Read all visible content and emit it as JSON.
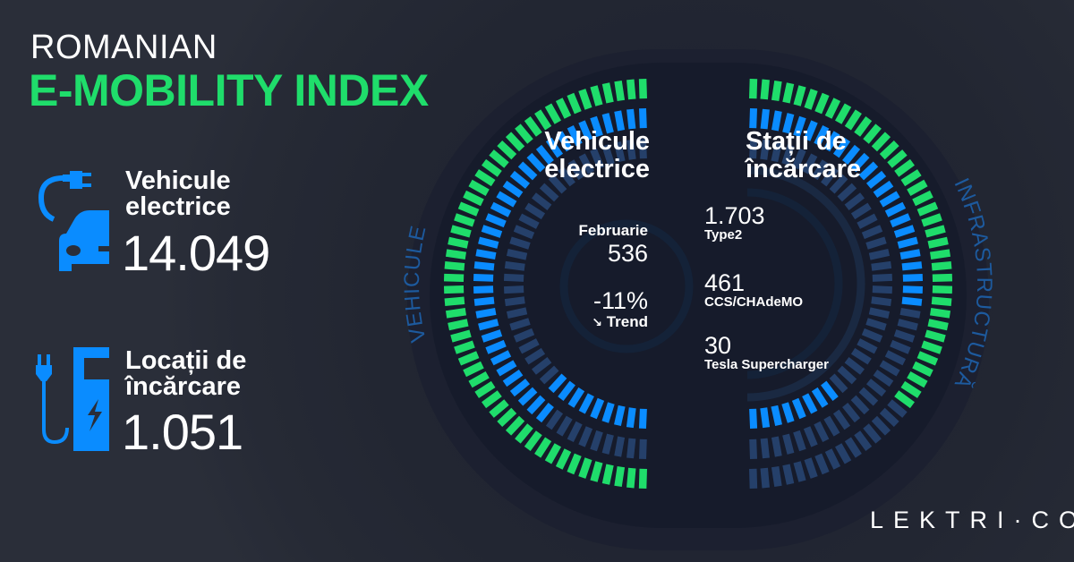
{
  "header": {
    "line1": "ROMANIAN",
    "line2": "E-MOBILITY INDEX"
  },
  "colors": {
    "green": "#1fdd6b",
    "blue": "#0a8cff",
    "dark_segment": "#25406a",
    "background": "#2a2e39",
    "text_arc": "#1d5a9e"
  },
  "vehicles": {
    "icon": "electric-car-plug-icon",
    "label_line1": "Vehicule",
    "label_line2": "electrice",
    "total": "14.049"
  },
  "locations": {
    "icon": "charging-station-icon",
    "label_line1": "Locații de",
    "label_line2": "încărcare",
    "total": "1.051"
  },
  "vehicle_gauge": {
    "arc_label": "VEHICULE",
    "title_line1": "Vehicule",
    "title_line2": "electrice",
    "month": "Februarie",
    "month_value": "536",
    "trend_value": "-11%",
    "trend_icon": "trend-down-icon",
    "trend_label": "Trend",
    "rings": [
      {
        "ranges": [
          [
            0,
            1,
            "green"
          ]
        ]
      },
      {
        "ranges": [
          [
            0,
            0.8,
            "blue"
          ],
          [
            0.8,
            1,
            "dark"
          ]
        ]
      },
      {
        "ranges": [
          [
            0,
            0.75,
            "dark"
          ],
          [
            0.75,
            1,
            "blue"
          ]
        ]
      }
    ]
  },
  "station_gauge": {
    "arc_label": "INFRASTRUCTURĂ",
    "title_line1": "Stații de",
    "title_line2": "încărcare",
    "items": [
      {
        "value": "1.703",
        "label": "Type2"
      },
      {
        "value": "461",
        "label": "CCS/CHAdeMO"
      },
      {
        "value": "30",
        "label": "Tesla Supercharger"
      }
    ],
    "rings": [
      {
        "ranges": [
          [
            0,
            0.72,
            "green"
          ],
          [
            0.72,
            1,
            "dark"
          ]
        ]
      },
      {
        "ranges": [
          [
            0,
            0.55,
            "blue"
          ],
          [
            0.55,
            1,
            "dark"
          ]
        ]
      },
      {
        "ranges": [
          [
            0,
            0.78,
            "dark"
          ],
          [
            0.78,
            1,
            "blue"
          ]
        ]
      }
    ]
  },
  "brand": {
    "logo": "LEKTRI·CO"
  }
}
